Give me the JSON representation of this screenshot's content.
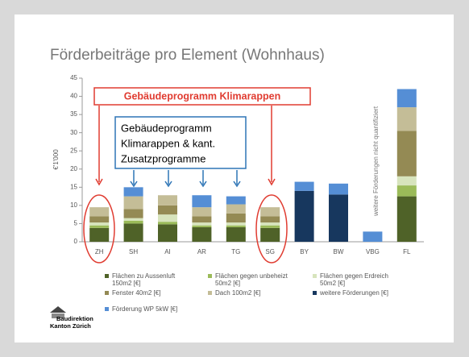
{
  "chart_data": {
    "type": "bar",
    "stacked": true,
    "title": "Förderbeiträge pro Element (Wohnhaus)",
    "ylabel": "€'1'000",
    "categories": [
      "ZH",
      "SH",
      "AI",
      "AR",
      "TG",
      "SG",
      "BY",
      "BW",
      "VBG",
      "FL"
    ],
    "series": [
      {
        "name": "Flächen zu Aussenluft 150m2 [€]",
        "color": "#4f6228",
        "values": [
          3.8,
          5,
          4.8,
          4,
          4,
          3.8,
          null,
          null,
          null,
          12.5
        ]
      },
      {
        "name": "Flächen gegen unbeheizt 50m2 [€]",
        "color": "#9bbb59",
        "values": [
          0.7,
          0.8,
          0.7,
          0.5,
          0.5,
          0.7,
          null,
          null,
          null,
          3
        ]
      },
      {
        "name": "Flächen gegen Erdreich 50m2 [€]",
        "color": "#d7e4bd",
        "values": [
          0.8,
          0.7,
          2,
          0.8,
          0.8,
          0.8,
          null,
          null,
          null,
          2.5
        ]
      },
      {
        "name": "Fenster 40m2 [€]",
        "color": "#948a54",
        "values": [
          1.7,
          2.5,
          2.5,
          1.7,
          2.5,
          1.7,
          null,
          null,
          null,
          12.5
        ]
      },
      {
        "name": "Dach 100m2 [€]",
        "color": "#c4bd97",
        "values": [
          2.5,
          3.5,
          2.8,
          2.5,
          2.5,
          2.5,
          null,
          null,
          null,
          6.5
        ]
      },
      {
        "name": "weitere Förderungen [€]",
        "color": "#17375e",
        "values": [
          null,
          null,
          null,
          null,
          null,
          null,
          14,
          13,
          null,
          null
        ]
      },
      {
        "name": "Förderung WP 5kW [€]",
        "color": "#558ed5",
        "values": [
          null,
          2.5,
          null,
          3.3,
          2.2,
          null,
          2.5,
          3,
          2.8,
          5
        ]
      }
    ],
    "ylim": [
      0,
      45
    ],
    "yticks": [
      0,
      5,
      10,
      15,
      20,
      25,
      30,
      35,
      40,
      45
    ],
    "annotations": {
      "red_box": "Gebäudeprogramm Klimarappen",
      "blue_box": [
        "Gebäudeprogramm",
        "Klimarappen & kant.",
        "Zusatzprogramme"
      ],
      "vertical_note": "weitere Förderungen nicht quantifiziert"
    },
    "logo": [
      "Baudirektion",
      "Kanton Zürich"
    ]
  }
}
